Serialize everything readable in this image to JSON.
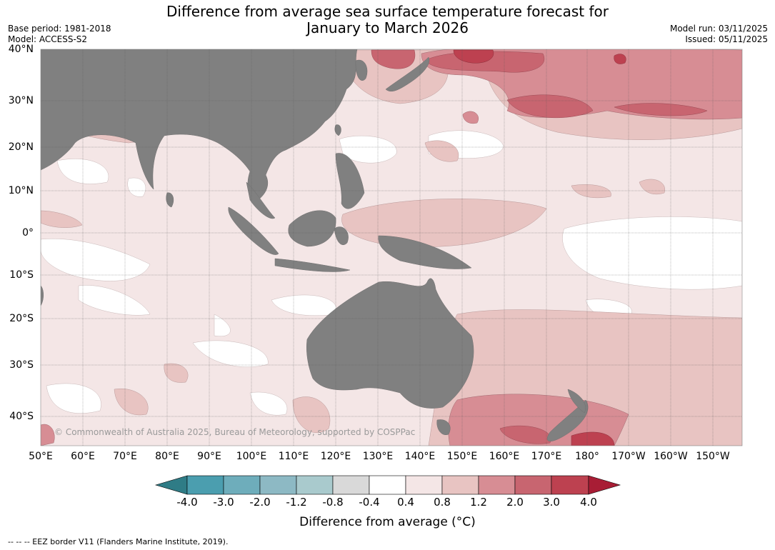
{
  "header": {
    "title_line1": "Difference from average sea surface temperature forecast for",
    "title_line2": "January to March 2026",
    "base_period": "Base period: 1981-2018",
    "model": "Model: ACCESS-S2",
    "model_run": "Model run: 03/11/2025",
    "issued": "Issued: 05/11/2025"
  },
  "map": {
    "latitude_labels": [
      "40°N",
      "30°N",
      "20°N",
      "10°N",
      "0°",
      "10°S",
      "20°S",
      "30°S",
      "40°S"
    ],
    "longitude_labels": [
      "50°E",
      "60°E",
      "70°E",
      "80°E",
      "90°E",
      "100°E",
      "110°E",
      "120°E",
      "130°E",
      "140°E",
      "150°E",
      "160°E",
      "170°E",
      "180°",
      "170°W",
      "160°W",
      "150°W"
    ],
    "watermark": "© Commonwealth of Australia 2025, Bureau of Meteorology, supported by COSPPac",
    "land_color": "#808080"
  },
  "colorbar": {
    "title": "Difference from average (°C)",
    "tick_labels": [
      "-4.0",
      "-3.0",
      "-2.0",
      "-1.2",
      "-0.8",
      "-0.4",
      "0.4",
      "0.8",
      "1.2",
      "2.0",
      "3.0",
      "4.0"
    ],
    "colors": [
      "#2f7c86",
      "#4b9eaf",
      "#6eadbb",
      "#8db9c4",
      "#a9cacd",
      "#d9d9d9",
      "#ffffff",
      "#f4e6e6",
      "#e8c4c2",
      "#d78d94",
      "#c86570",
      "#bd4150",
      "#a81d35"
    ]
  },
  "footnote": "--  --  -- EEZ border V11 (Flanders Marine Institute, 2019)."
}
